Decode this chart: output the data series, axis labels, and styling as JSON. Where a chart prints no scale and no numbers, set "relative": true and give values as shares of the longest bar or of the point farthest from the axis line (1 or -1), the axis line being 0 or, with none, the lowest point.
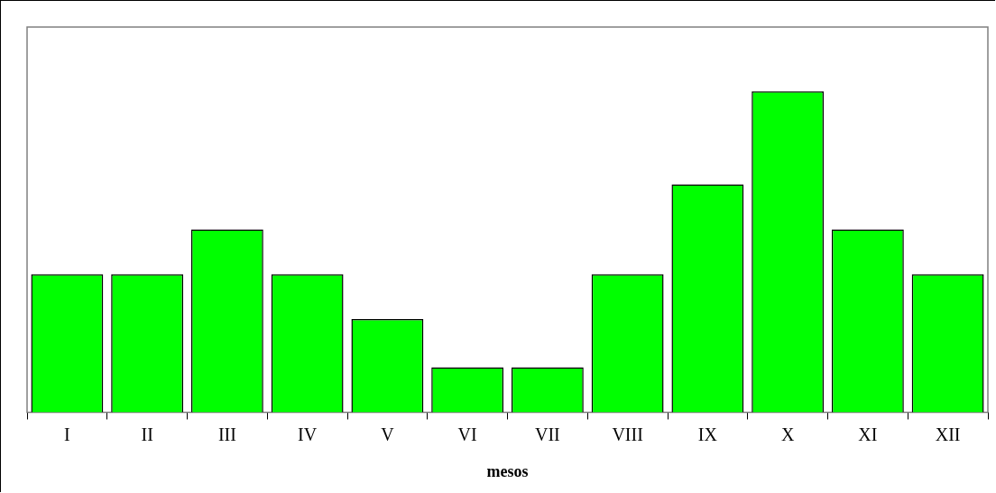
{
  "chart_data": {
    "type": "bar",
    "relative": true,
    "xlabel": "mesos",
    "categories": [
      "I",
      "II",
      "III",
      "IV",
      "V",
      "VI",
      "VII",
      "VIII",
      "IX",
      "X",
      "XI",
      "XII"
    ],
    "values": [
      0.43,
      0.43,
      0.57,
      0.43,
      0.29,
      0.14,
      0.14,
      0.43,
      0.71,
      1,
      0.57,
      0.43
    ],
    "color": "#00ff00",
    "grid": false,
    "legend": false
  }
}
